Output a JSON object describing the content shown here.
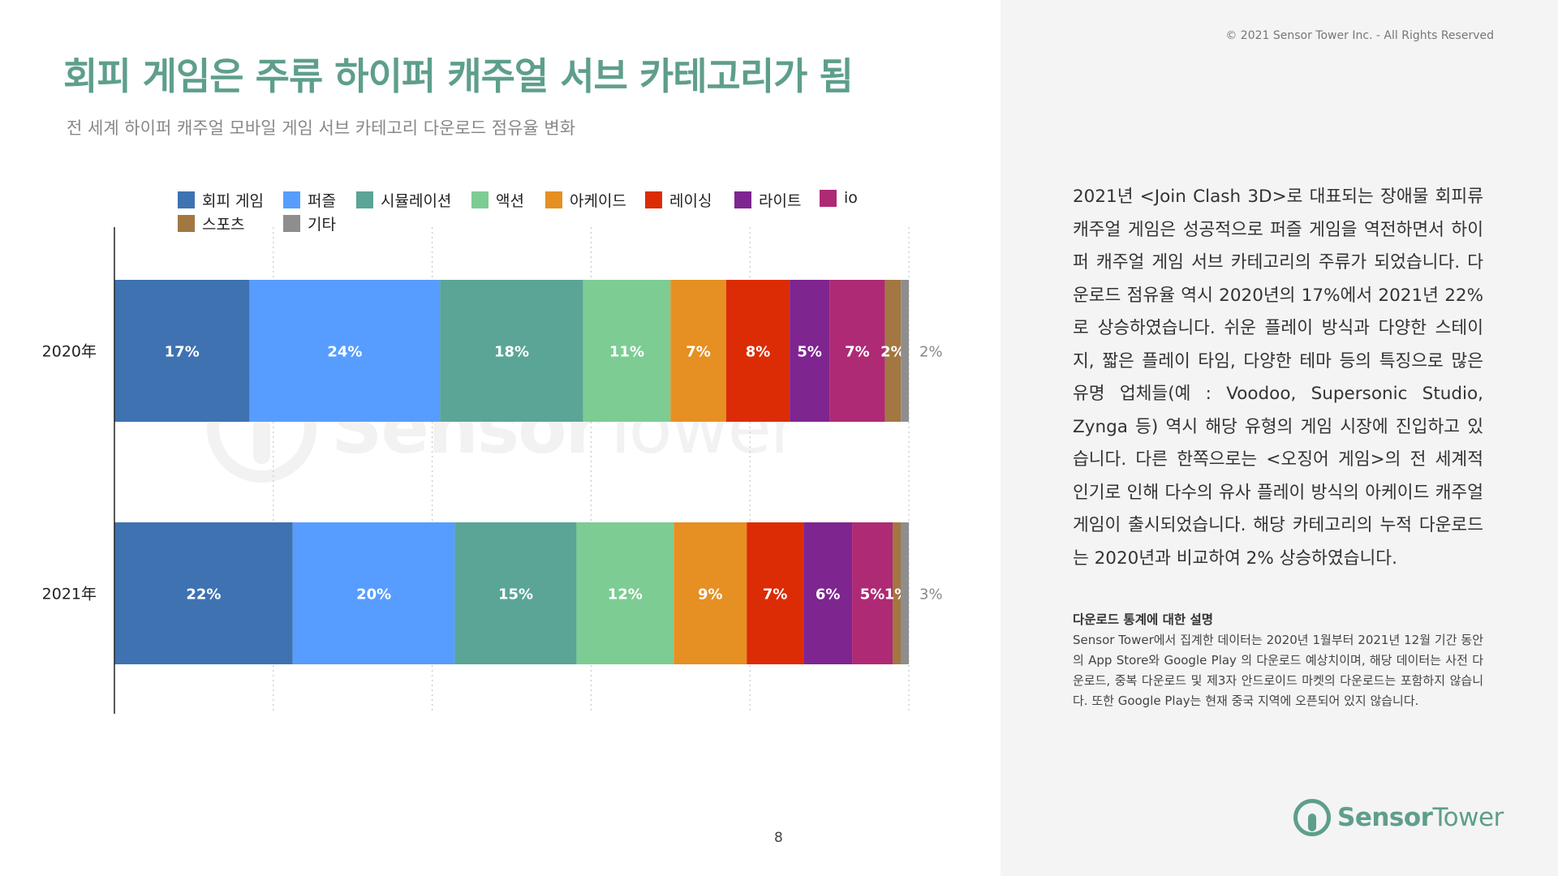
{
  "header": {
    "title": "회피 게임은 주류 하이퍼 캐주얼 서브 카테고리가 됨",
    "subtitle": "전 세계 하이퍼 캐주얼 모바일 게임 서브 카테고리 다운로드 점유율 변화",
    "copyright": "© 2021 Sensor Tower Inc. - All Rights Reserved"
  },
  "page_number": "8",
  "watermark": {
    "brand_a": "Sensor",
    "brand_b": "Tower"
  },
  "chart_data": {
    "type": "bar",
    "orientation": "horizontal",
    "stacked": true,
    "normalized": true,
    "categories": [
      "2020年",
      "2021年"
    ],
    "series": [
      {
        "name": "회피 게임",
        "color": "#3f72b1",
        "values": [
          17,
          22
        ],
        "labels": [
          "17%",
          "22%"
        ]
      },
      {
        "name": "퍼즐",
        "color": "#579dff",
        "values": [
          24,
          20
        ],
        "labels": [
          "24%",
          "20%"
        ]
      },
      {
        "name": "시뮬레이션",
        "color": "#5aa596",
        "values": [
          18,
          15
        ],
        "labels": [
          "18%",
          "15%"
        ]
      },
      {
        "name": "액션",
        "color": "#7dcc93",
        "values": [
          11,
          12
        ],
        "labels": [
          "11%",
          "12%"
        ]
      },
      {
        "name": "아케이드",
        "color": "#e68f22",
        "values": [
          7,
          9
        ],
        "labels": [
          "7%",
          "9%"
        ]
      },
      {
        "name": "레이싱",
        "color": "#dc2c05",
        "values": [
          8,
          7
        ],
        "labels": [
          "8%",
          "7%"
        ]
      },
      {
        "name": "라이트",
        "color": "#7e2590",
        "values": [
          5,
          6
        ],
        "labels": [
          "5%",
          "6%"
        ]
      },
      {
        "name": "io",
        "color": "#ae2a74",
        "values": [
          7,
          5
        ],
        "labels": [
          "7%",
          "5%"
        ]
      },
      {
        "name": "스포츠",
        "color": "#a37742",
        "values": [
          2,
          1
        ],
        "labels": [
          "2%",
          "1%"
        ]
      },
      {
        "name": "기타",
        "color": "#8e8e8e",
        "values": [
          1,
          1
        ],
        "labels": [
          "",
          ""
        ]
      }
    ],
    "outside_labels": [
      "2%",
      "3%"
    ],
    "xlim": [
      0,
      100
    ],
    "grid": true,
    "legend_position": "top"
  },
  "commentary": {
    "body": "2021년 <Join Clash 3D>로 대표되는 장애물 회피류 캐주얼 게임은 성공적으로 퍼즐 게임을 역전하면서 하이퍼 캐주얼 게임 서브 카테고리의 주류가 되었습니다. 다운로드 점유율 역시 2020년의 17%에서 2021년 22%로 상승하였습니다. 쉬운 플레이 방식과 다양한 스테이지, 짧은 플레이 타임, 다양한 테마 등의 특징으로 많은 유명 업체들(예 : Voodoo, Supersonic Studio, Zynga 등) 역시 해당 유형의 게임 시장에 진입하고 있습니다. 다른 한쪽으로는 <오징어 게임>의 전 세계적 인기로 인해 다수의 유사 플레이 방식의 아케이드 캐주얼 게임이 출시되었습니다. 해당 카테고리의 누적 다운로드는 2020년과 비교하여 2% 상승하였습니다.",
    "note_title": "다운로드 통계에 대한 설명",
    "note_text": "Sensor Tower에서 집계한 데이터는 2020년 1월부터 2021년 12월 기간 동안의 App Store와 Google Play 의 다운로드 예상치이며, 해당 데이터는 사전 다운로드, 중복 다운로드 및 제3자 안드로이드 마켓의 다운로드는 포함하지 않습니다. 또한 Google Play는 현재 중국 지역에 오픈되어 있지 않습니다."
  },
  "logo": {
    "brand_a": "Sensor",
    "brand_b": "Tower"
  }
}
